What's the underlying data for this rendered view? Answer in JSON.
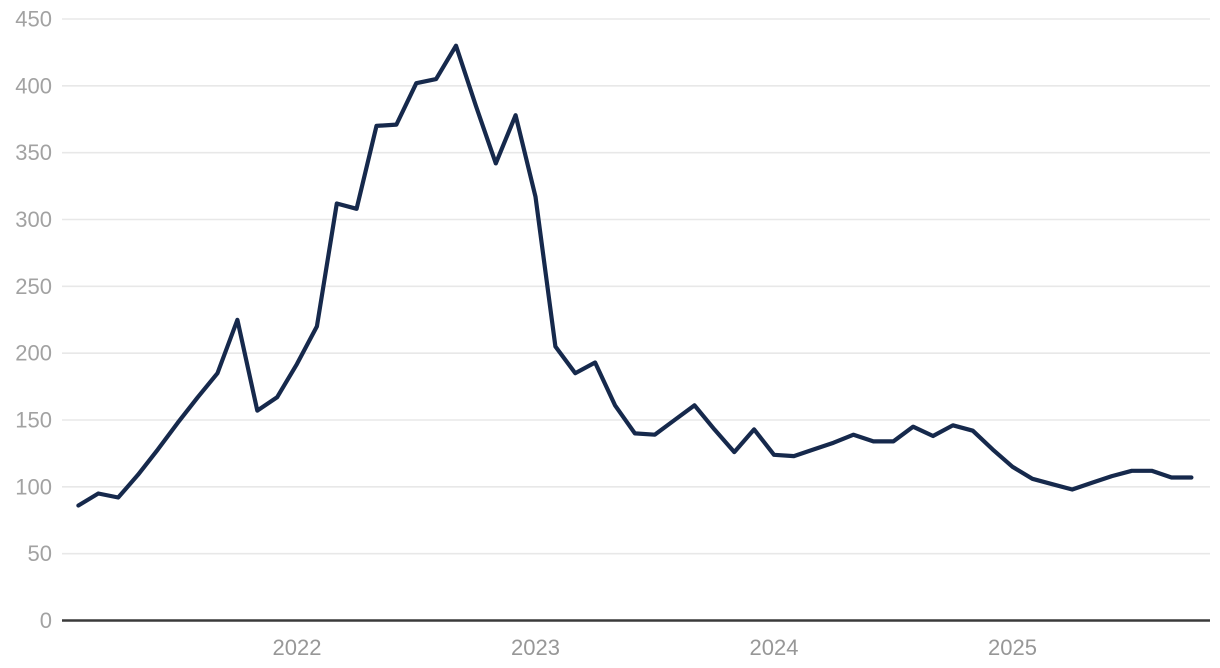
{
  "chart_data": {
    "type": "line",
    "title": "",
    "xlabel": "",
    "ylabel": "",
    "ylim": [
      0,
      450
    ],
    "y_ticks": [
      0,
      50,
      100,
      150,
      200,
      250,
      300,
      350,
      400,
      450
    ],
    "grid": "horizontal",
    "legend": "none",
    "x_interval": "monthly",
    "x_start": "2021-02",
    "x_end": "2025-10",
    "year_ticks": [
      {
        "label": "2022",
        "month_index": 11
      },
      {
        "label": "2023",
        "month_index": 23
      },
      {
        "label": "2024",
        "month_index": 35
      },
      {
        "label": "2025",
        "month_index": 47
      }
    ],
    "series": [
      {
        "name": "value",
        "color": "#16294c",
        "values": [
          86,
          95,
          92,
          109,
          128,
          148,
          167,
          185,
          225,
          157,
          167,
          192,
          220,
          312,
          308,
          370,
          371,
          402,
          405,
          430,
          385,
          342,
          378,
          317,
          205,
          185,
          193,
          161,
          140,
          139,
          150,
          161,
          143,
          126,
          143,
          124,
          123,
          128,
          133,
          139,
          134,
          134,
          145,
          138,
          146,
          142,
          128,
          115,
          106,
          102,
          98,
          103,
          108,
          112,
          112,
          107,
          107
        ]
      }
    ],
    "colors": {
      "line": "#16294c",
      "gridline": "#e8e8e8",
      "axis_line": "#3a3a3a",
      "y_tick_label": "#a2a2a2",
      "x_tick_label": "#979797",
      "background": "#ffffff"
    }
  }
}
